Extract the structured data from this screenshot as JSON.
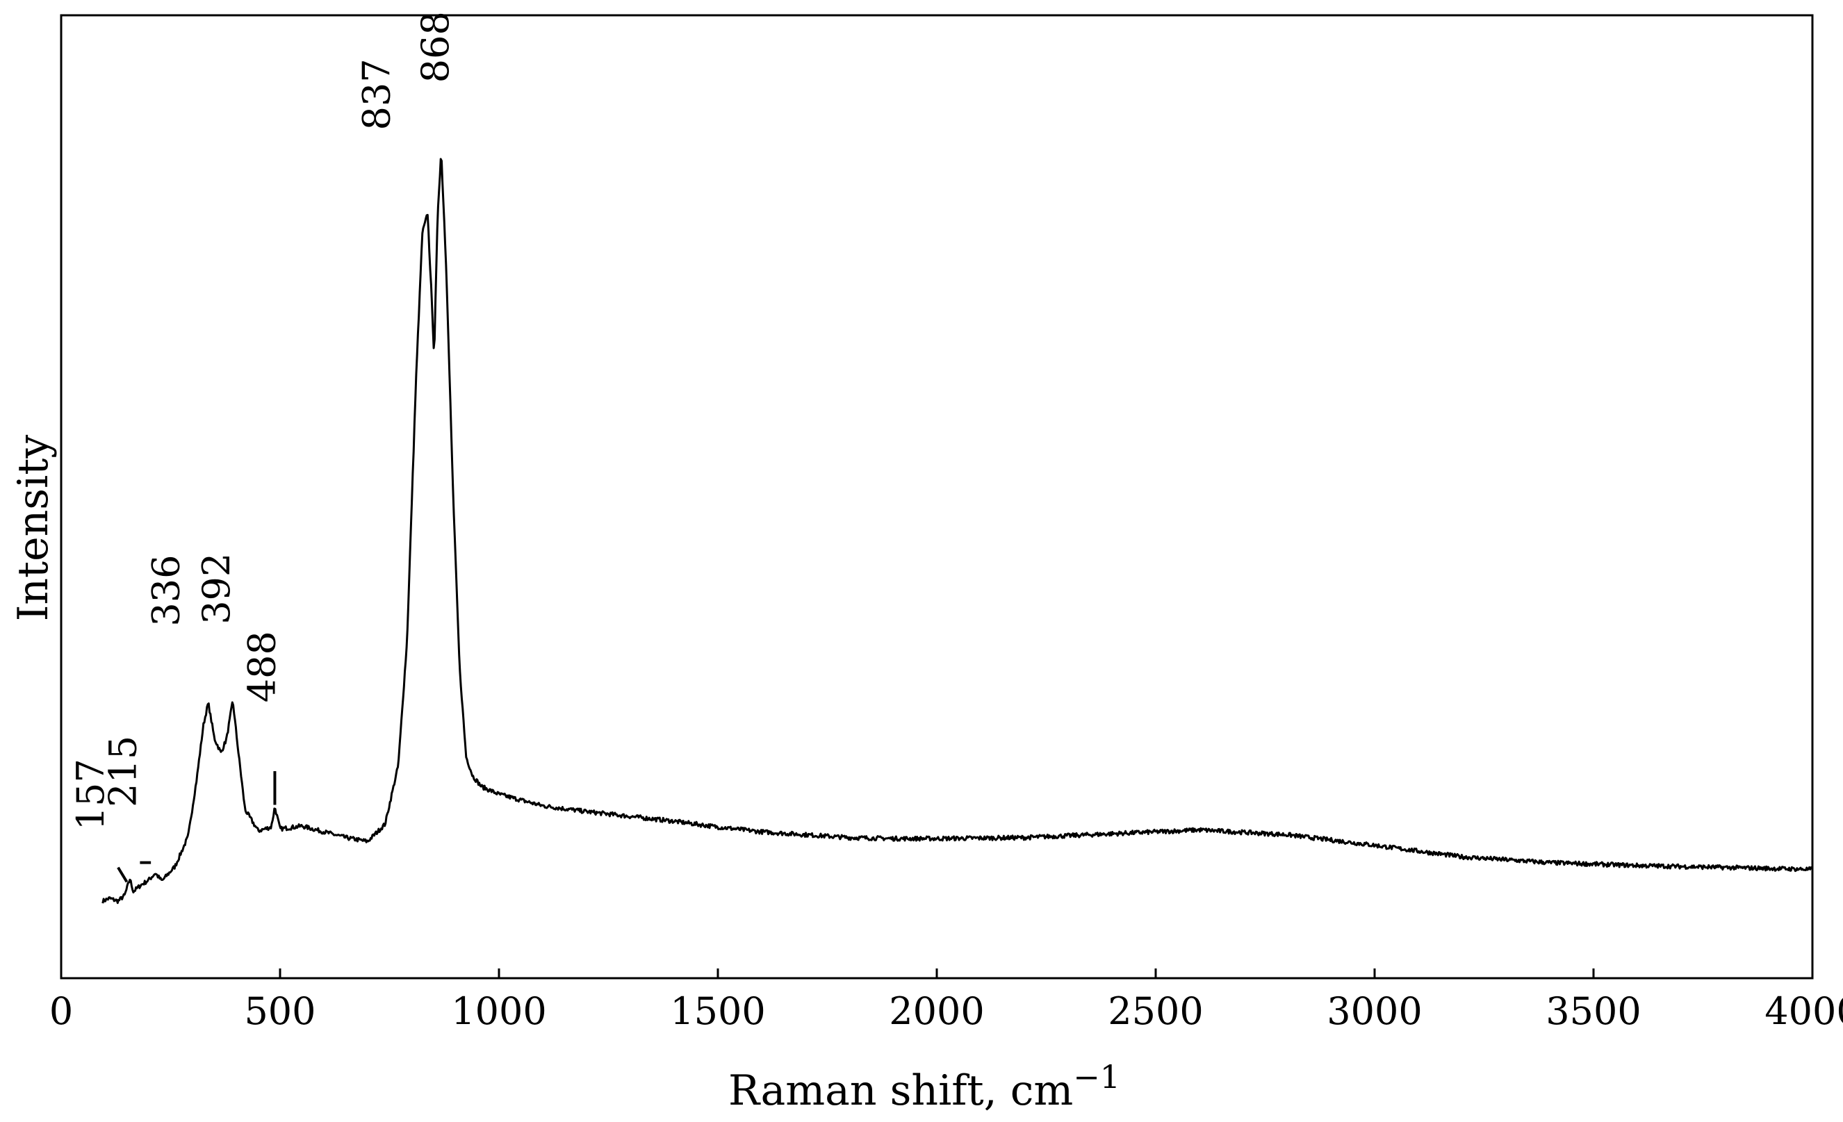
{
  "chart_data": {
    "type": "line",
    "title": "",
    "xlabel": "Raman shift, cm",
    "xlabel_superscript": "−1",
    "ylabel": "Intensity",
    "xlim": [
      0,
      4000
    ],
    "ylim": [
      0,
      100
    ],
    "x_ticks": [
      0,
      500,
      1000,
      1500,
      2000,
      2500,
      3000,
      3500,
      4000
    ],
    "x_tick_labels": [
      "0",
      "500",
      "1000",
      "1500",
      "2000",
      "2500",
      "3000",
      "3500",
      "4000"
    ],
    "y_ticks_shown": false,
    "grid": false,
    "legend": "none",
    "line_color": "#000000",
    "series": [
      {
        "x": [
          95,
          110,
          130,
          145,
          157,
          165,
          180,
          200,
          215,
          230,
          260,
          290,
          310,
          325,
          336,
          350,
          365,
          378,
          392,
          405,
          420,
          450,
          480,
          488,
          500,
          550,
          600,
          650,
          700,
          740,
          770,
          790,
          810,
          825,
          837,
          845,
          852,
          860,
          868,
          880,
          895,
          910,
          925,
          940,
          960,
          1000,
          1100,
          1200,
          1300,
          1400,
          1500,
          1600,
          1700,
          1800,
          1900,
          2000,
          2200,
          2400,
          2600,
          2800,
          3000,
          3200,
          3400,
          3600,
          3800,
          4000
        ],
        "y": [
          8.0,
          8.3,
          8.0,
          8.6,
          10.3,
          9.0,
          9.6,
          10.2,
          10.9,
          10.1,
          11.6,
          14.7,
          20.8,
          26.3,
          28.6,
          24.9,
          23.4,
          24.9,
          28.8,
          23.4,
          17.5,
          15.3,
          15.7,
          17.8,
          15.5,
          15.8,
          15.2,
          14.6,
          14.2,
          16.0,
          22.1,
          35.0,
          61.5,
          77.4,
          79.4,
          71.8,
          64.6,
          79.4,
          85.9,
          73.3,
          50.6,
          32.3,
          23.0,
          21.0,
          19.9,
          19.1,
          17.9,
          17.3,
          16.8,
          16.3,
          15.7,
          15.2,
          14.9,
          14.6,
          14.5,
          14.5,
          14.6,
          15.0,
          15.4,
          14.9,
          13.8,
          12.6,
          12.0,
          11.7,
          11.5,
          11.3
        ]
      }
    ],
    "peak_labels": [
      "157",
      "215",
      "336",
      "392",
      "488",
      "837",
      "868"
    ],
    "peak_positions": [
      157,
      215,
      336,
      392,
      488,
      837,
      868
    ]
  }
}
